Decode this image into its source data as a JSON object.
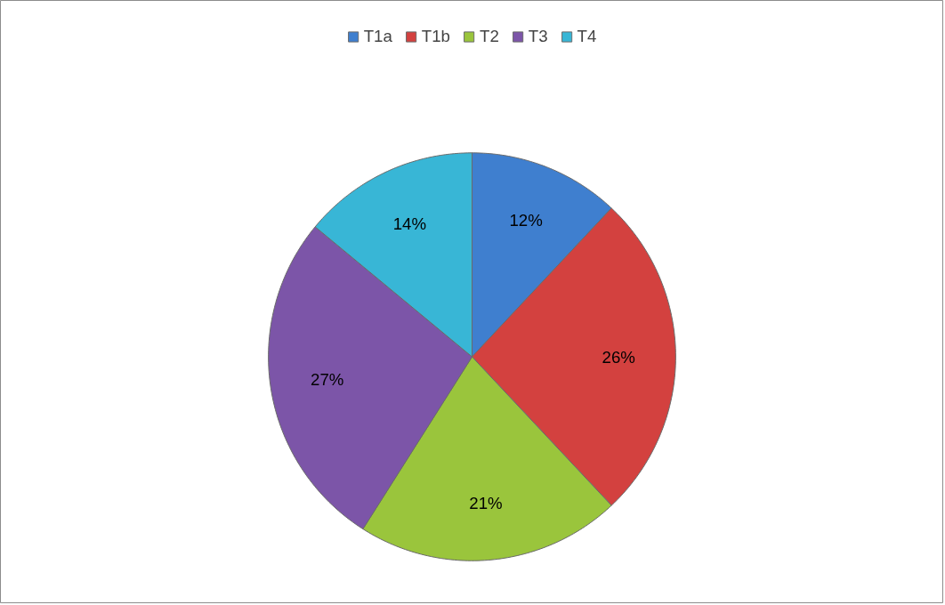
{
  "chart_data": {
    "type": "pie",
    "categories": [
      "T1a",
      "T1b",
      "T2",
      "T3",
      "T4"
    ],
    "values": [
      12,
      26,
      21,
      27,
      14
    ],
    "colors": [
      "#3f7fcf",
      "#d3413f",
      "#9ac53c",
      "#7c55a8",
      "#38b6d6"
    ],
    "value_labels": [
      "12%",
      "26%",
      "21%",
      "27%",
      "14%"
    ],
    "legend": "top"
  }
}
